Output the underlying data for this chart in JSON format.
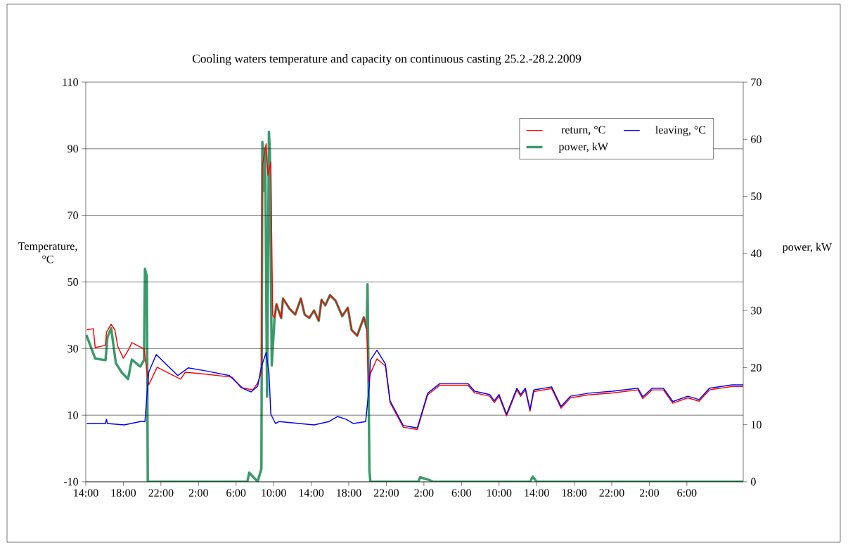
{
  "chart_data": {
    "type": "line",
    "title": "Cooling waters temperature and capacity on continuous casting 25.2.-28.2.2009",
    "ylabel": "Temperature, °C",
    "y2label": "power, kW",
    "xlim": [
      "2009-02-25T14:00",
      "2009-02-28T12:00"
    ],
    "xticks": [
      {
        "value": "2009-02-25T14:00",
        "label": "14:00"
      },
      {
        "value": "2009-02-25T18:00",
        "label": "18:00"
      },
      {
        "value": "2009-02-25T22:00",
        "label": "22:00"
      },
      {
        "value": "2009-02-26T02:00",
        "label": "2:00"
      },
      {
        "value": "2009-02-26T06:00",
        "label": "6:00"
      },
      {
        "value": "2009-02-26T10:00",
        "label": "10:00"
      },
      {
        "value": "2009-02-26T14:00",
        "label": "14:00"
      },
      {
        "value": "2009-02-26T18:00",
        "label": "18:00"
      },
      {
        "value": "2009-02-26T22:00",
        "label": "22:00"
      },
      {
        "value": "2009-02-27T02:00",
        "label": "2:00"
      },
      {
        "value": "2009-02-27T06:00",
        "label": "6:00"
      },
      {
        "value": "2009-02-27T10:00",
        "label": "10:00"
      },
      {
        "value": "2009-02-27T14:00",
        "label": "14:00"
      },
      {
        "value": "2009-02-27T18:00",
        "label": "18:00"
      },
      {
        "value": "2009-02-27T22:00",
        "label": "22:00"
      },
      {
        "value": "2009-02-28T02:00",
        "label": "2:00"
      },
      {
        "value": "2009-02-28T06:00",
        "label": "6:00"
      }
    ],
    "ylim": [
      -10,
      110
    ],
    "yticks": [
      -10,
      10,
      30,
      50,
      70,
      90,
      110
    ],
    "y2lim": [
      0,
      70
    ],
    "y2ticks": [
      0,
      10,
      20,
      30,
      40,
      50,
      60,
      70
    ],
    "grid": "y",
    "legend": "top right",
    "series": [
      {
        "name": "return, °C",
        "color": "#ff0000",
        "x": [
          "2009-02-25T14:06",
          "2009-02-25T14:48",
          "2009-02-25T15:00",
          "2009-02-25T16:06",
          "2009-02-25T16:12",
          "2009-02-25T16:42",
          "2009-02-25T17:06",
          "2009-02-25T17:24",
          "2009-02-25T18:00",
          "2009-02-25T18:36",
          "2009-02-25T18:54",
          "2009-02-25T20:12",
          "2009-02-25T20:42",
          "2009-02-25T21:36",
          "2009-02-26T00:06",
          "2009-02-26T00:36",
          "2009-02-26T02:48",
          "2009-02-26T05:36",
          "2009-02-26T06:30",
          "2009-02-26T07:48",
          "2009-02-26T08:18",
          "2009-02-26T08:42",
          "2009-02-26T08:48",
          "2009-02-26T09:12",
          "2009-02-26T09:24",
          "2009-02-26T09:42",
          "2009-02-26T09:54",
          "2009-02-26T10:06",
          "2009-02-26T10:18",
          "2009-02-26T10:48",
          "2009-02-26T11:00",
          "2009-02-26T11:42",
          "2009-02-26T12:18",
          "2009-02-26T12:54",
          "2009-02-26T13:18",
          "2009-02-26T13:48",
          "2009-02-26T14:18",
          "2009-02-26T14:48",
          "2009-02-26T15:06",
          "2009-02-26T15:30",
          "2009-02-26T16:00",
          "2009-02-26T16:36",
          "2009-02-26T17:18",
          "2009-02-26T17:54",
          "2009-02-26T18:18",
          "2009-02-26T18:54",
          "2009-02-26T19:36",
          "2009-02-26T19:54",
          "2009-02-26T20:06",
          "2009-02-26T20:18",
          "2009-02-26T21:00",
          "2009-02-26T21:54",
          "2009-02-26T22:24",
          "2009-02-26T23:48",
          "2009-02-27T01:18",
          "2009-02-27T02:24",
          "2009-02-27T03:42",
          "2009-02-27T06:42",
          "2009-02-27T07:24",
          "2009-02-27T09:00",
          "2009-02-27T09:30",
          "2009-02-27T10:00",
          "2009-02-27T10:48",
          "2009-02-27T11:54",
          "2009-02-27T12:18",
          "2009-02-27T12:48",
          "2009-02-27T13:18",
          "2009-02-27T13:42",
          "2009-02-27T15:36",
          "2009-02-27T16:36",
          "2009-02-27T17:36",
          "2009-02-27T19:30",
          "2009-02-27T22:06",
          "2009-02-28T00:48",
          "2009-02-28T01:18",
          "2009-02-28T02:18",
          "2009-02-28T03:30",
          "2009-02-28T04:30",
          "2009-02-28T06:06",
          "2009-02-28T07:18",
          "2009-02-28T08:24",
          "2009-02-28T10:48",
          "2009-02-28T12:00"
        ],
        "values": [
          35.6,
          36,
          30.3,
          31,
          34.9,
          37.3,
          35.6,
          30.7,
          27.1,
          29.9,
          31.8,
          29.9,
          19.1,
          24.4,
          20.8,
          22.9,
          22.3,
          21.4,
          18.3,
          17.6,
          19.7,
          22.9,
          85,
          91.5,
          82,
          86,
          40,
          39.2,
          43.4,
          39.2,
          45.1,
          41.9,
          40.2,
          45.1,
          40.2,
          39.2,
          41.5,
          38.3,
          44.6,
          43.0,
          46.1,
          44.4,
          39.8,
          42.3,
          35.6,
          33.9,
          39.4,
          36.2,
          20,
          22.5,
          26.9,
          24.8,
          13.8,
          6.4,
          5.7,
          16.1,
          19.0,
          19.0,
          16.7,
          15.7,
          13.8,
          15.7,
          9.8,
          17.6,
          15.7,
          17.6,
          11.2,
          17.1,
          18.0,
          12.1,
          15.2,
          16.1,
          16.7,
          17.6,
          15.0,
          17.6,
          17.6,
          13.6,
          15.2,
          14.2,
          17.6,
          18.6,
          18.6
        ]
      },
      {
        "name": "leaving, °C",
        "color": "#0000ff",
        "x": [
          "2009-02-25T14:06",
          "2009-02-25T16:06",
          "2009-02-25T16:12",
          "2009-02-25T16:18",
          "2009-02-25T18:06",
          "2009-02-25T19:48",
          "2009-02-25T20:18",
          "2009-02-25T20:42",
          "2009-02-25T21:30",
          "2009-02-25T23:48",
          "2009-02-26T00:54",
          "2009-02-26T02:48",
          "2009-02-26T05:18",
          "2009-02-26T06:42",
          "2009-02-26T07:36",
          "2009-02-26T08:18",
          "2009-02-26T08:42",
          "2009-02-26T09:12",
          "2009-02-26T09:30",
          "2009-02-26T09:42",
          "2009-02-26T10:12",
          "2009-02-26T10:36",
          "2009-02-26T14:18",
          "2009-02-26T15:54",
          "2009-02-26T16:48",
          "2009-02-26T17:42",
          "2009-02-26T18:30",
          "2009-02-26T19:48",
          "2009-02-26T20:12",
          "2009-02-26T20:18",
          "2009-02-26T21:00",
          "2009-02-26T21:54",
          "2009-02-26T22:24",
          "2009-02-26T23:48",
          "2009-02-27T01:18",
          "2009-02-27T02:24",
          "2009-02-27T03:42",
          "2009-02-27T06:42",
          "2009-02-27T07:24",
          "2009-02-27T09:00",
          "2009-02-27T09:30",
          "2009-02-27T10:00",
          "2009-02-27T10:48",
          "2009-02-27T11:54",
          "2009-02-27T12:18",
          "2009-02-27T12:48",
          "2009-02-27T13:18",
          "2009-02-27T13:42",
          "2009-02-27T15:36",
          "2009-02-27T16:36",
          "2009-02-27T17:36",
          "2009-02-27T19:30",
          "2009-02-27T22:06",
          "2009-02-28T00:48",
          "2009-02-28T01:18",
          "2009-02-28T02:18",
          "2009-02-28T03:30",
          "2009-02-28T04:30",
          "2009-02-28T06:06",
          "2009-02-28T07:18",
          "2009-02-28T08:24",
          "2009-02-28T10:48",
          "2009-02-28T12:00"
        ],
        "values": [
          7.5,
          7.5,
          8.8,
          7.5,
          7.1,
          8.1,
          8.1,
          22.9,
          28.2,
          21.9,
          24.2,
          23.3,
          21.9,
          18.1,
          17.0,
          18.7,
          24.6,
          28.8,
          22.9,
          10.3,
          7.5,
          8.1,
          7.1,
          8.1,
          9.6,
          8.8,
          7.5,
          8.1,
          19.3,
          26.5,
          29.5,
          25.4,
          14.3,
          6.9,
          6.2,
          16.6,
          19.5,
          19.5,
          17.2,
          16.2,
          14.3,
          16.2,
          10.3,
          18.1,
          16.2,
          18.1,
          11.7,
          17.6,
          18.5,
          12.6,
          15.7,
          16.6,
          17.2,
          18.1,
          15.5,
          18.1,
          18.1,
          14.1,
          15.7,
          14.7,
          18.1,
          19.1,
          19.1
        ]
      },
      {
        "name": "power, kW",
        "color": "#3a9a6a",
        "axis": "y2",
        "x": [
          "2009-02-25T14:04",
          "2009-02-25T15:00",
          "2009-02-25T16:06",
          "2009-02-25T16:18",
          "2009-02-25T16:42",
          "2009-02-25T17:12",
          "2009-02-25T17:48",
          "2009-02-25T18:30",
          "2009-02-25T18:54",
          "2009-02-25T19:48",
          "2009-02-25T20:12",
          "2009-02-25T20:18",
          "2009-02-25T20:30",
          "2009-02-25T20:36",
          "2009-02-26T07:12",
          "2009-02-26T07:24",
          "2009-02-26T08:18",
          "2009-02-26T08:42",
          "2009-02-26T08:48",
          "2009-02-26T09:00",
          "2009-02-26T09:06",
          "2009-02-26T09:18",
          "2009-02-26T09:30",
          "2009-02-26T09:36",
          "2009-02-26T09:48",
          "2009-02-26T10:06",
          "2009-02-26T10:18",
          "2009-02-26T10:48",
          "2009-02-26T11:00",
          "2009-02-26T11:42",
          "2009-02-26T12:18",
          "2009-02-26T12:54",
          "2009-02-26T13:18",
          "2009-02-26T13:48",
          "2009-02-26T14:18",
          "2009-02-26T14:48",
          "2009-02-26T15:06",
          "2009-02-26T15:30",
          "2009-02-26T16:00",
          "2009-02-26T16:36",
          "2009-02-26T17:18",
          "2009-02-26T17:54",
          "2009-02-26T18:18",
          "2009-02-26T18:54",
          "2009-02-26T19:36",
          "2009-02-26T19:54",
          "2009-02-26T20:00",
          "2009-02-26T20:12",
          "2009-02-26T20:18",
          "2009-02-27T01:24",
          "2009-02-27T01:36",
          "2009-02-27T02:36",
          "2009-02-27T03:00",
          "2009-02-27T13:18",
          "2009-02-27T13:36",
          "2009-02-27T14:00",
          "2009-02-28T12:00"
        ],
        "values": [
          25.7,
          21.6,
          21.3,
          25.3,
          26.9,
          20.8,
          19.2,
          18,
          21.4,
          20.2,
          21.3,
          37.3,
          36,
          0,
          0,
          1.6,
          0,
          2.3,
          59.5,
          51,
          58.5,
          14.9,
          61.3,
          58,
          20.4,
          28.7,
          31.1,
          28.7,
          32.1,
          30.3,
          29.3,
          32.1,
          29.3,
          28.7,
          30.0,
          28.2,
          31.9,
          30.9,
          32.7,
          31.7,
          29.0,
          30.5,
          26.6,
          25.6,
          28.8,
          26.9,
          34.6,
          2.0,
          0,
          0,
          0.8,
          0.3,
          0,
          0,
          0.9,
          0,
          0
        ]
      }
    ]
  }
}
